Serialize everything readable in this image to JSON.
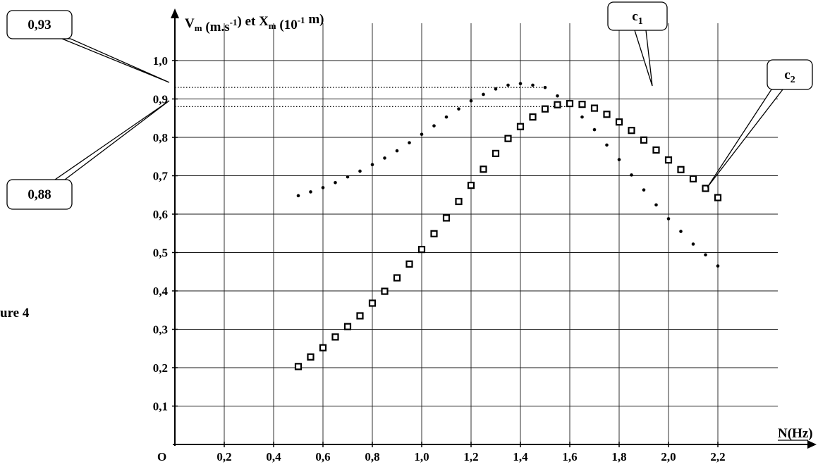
{
  "chart_data": {
    "type": "scatter",
    "y_axis_label": {
      "parts": [
        {
          "text": "V",
          "sub": "m"
        },
        {
          "text": " (m.s"
        },
        {
          "sup": "-1"
        },
        {
          "text": ")   et  X"
        },
        {
          "sub": "m"
        },
        {
          "text": " (10"
        },
        {
          "sup": "-1"
        },
        {
          "text": " m)"
        }
      ]
    },
    "x_axis_label": "N(Hz)",
    "origin_label": "O",
    "side_label": "ure 4",
    "x_range": [
      0,
      2.52
    ],
    "y_range": [
      0,
      1.08
    ],
    "x_ticks": [
      {
        "value": 0.2,
        "label": "0,2"
      },
      {
        "value": 0.4,
        "label": "0,4"
      },
      {
        "value": 0.6,
        "label": "0,6"
      },
      {
        "value": 0.8,
        "label": "0,8"
      },
      {
        "value": 1.0,
        "label": "1,0"
      },
      {
        "value": 1.2,
        "label": "1,2"
      },
      {
        "value": 1.4,
        "label": "1,4"
      },
      {
        "value": 1.6,
        "label": "1,6"
      },
      {
        "value": 1.8,
        "label": "1,8"
      },
      {
        "value": 2.0,
        "label": "2,0"
      },
      {
        "value": 2.2,
        "label": "2,2"
      }
    ],
    "y_ticks": [
      {
        "value": 0.1,
        "label": "0,1"
      },
      {
        "value": 0.2,
        "label": "0,2"
      },
      {
        "value": 0.3,
        "label": "0,3"
      },
      {
        "value": 0.4,
        "label": "0,4"
      },
      {
        "value": 0.5,
        "label": "0,5"
      },
      {
        "value": 0.6,
        "label": "0,6"
      },
      {
        "value": 0.7,
        "label": "0,7"
      },
      {
        "value": 0.8,
        "label": "0,8"
      },
      {
        "value": 0.9,
        "label": "0,9"
      },
      {
        "value": 1.0,
        "label": "1,0"
      }
    ],
    "grid": true,
    "reference_lines": [
      {
        "y": 0.93,
        "x_end": 1.5,
        "style": "dotted"
      },
      {
        "y": 0.88,
        "x_end": 1.6,
        "style": "dotted"
      }
    ],
    "series": [
      {
        "name": "c1",
        "marker": "dot",
        "x": [
          0.5,
          0.55,
          0.6,
          0.65,
          0.7,
          0.75,
          0.8,
          0.85,
          0.9,
          0.95,
          1.0,
          1.05,
          1.1,
          1.15,
          1.2,
          1.25,
          1.3,
          1.35,
          1.4,
          1.45,
          1.5,
          1.55,
          1.6,
          1.65,
          1.7,
          1.75,
          1.8,
          1.85,
          1.9,
          1.95,
          2.0,
          2.05,
          2.1,
          2.15,
          2.2
        ],
        "y": [
          0.648,
          0.658,
          0.669,
          0.682,
          0.697,
          0.712,
          0.729,
          0.746,
          0.765,
          0.786,
          0.808,
          0.83,
          0.853,
          0.874,
          0.895,
          0.912,
          0.926,
          0.936,
          0.94,
          0.936,
          0.93,
          0.908,
          0.885,
          0.853,
          0.82,
          0.78,
          0.742,
          0.702,
          0.663,
          0.624,
          0.588,
          0.555,
          0.522,
          0.494,
          0.465
        ]
      },
      {
        "name": "c2",
        "marker": "square",
        "x": [
          0.5,
          0.55,
          0.6,
          0.65,
          0.7,
          0.75,
          0.8,
          0.85,
          0.9,
          0.95,
          1.0,
          1.05,
          1.1,
          1.15,
          1.2,
          1.25,
          1.3,
          1.35,
          1.4,
          1.45,
          1.5,
          1.55,
          1.6,
          1.65,
          1.7,
          1.75,
          1.8,
          1.85,
          1.9,
          1.95,
          2.0,
          2.05,
          2.1,
          2.15,
          2.2
        ],
        "y": [
          0.203,
          0.228,
          0.252,
          0.28,
          0.307,
          0.335,
          0.368,
          0.399,
          0.434,
          0.47,
          0.508,
          0.549,
          0.59,
          0.633,
          0.675,
          0.717,
          0.758,
          0.797,
          0.828,
          0.853,
          0.874,
          0.885,
          0.888,
          0.886,
          0.876,
          0.86,
          0.84,
          0.818,
          0.793,
          0.767,
          0.741,
          0.716,
          0.692,
          0.667,
          0.643
        ]
      }
    ],
    "callouts": [
      {
        "id": "v093",
        "text": "0,93"
      },
      {
        "id": "v088",
        "text": "0,88"
      },
      {
        "id": "c1",
        "main": "c",
        "sub": "1"
      },
      {
        "id": "c2",
        "main": "c",
        "sub": "2"
      }
    ]
  }
}
